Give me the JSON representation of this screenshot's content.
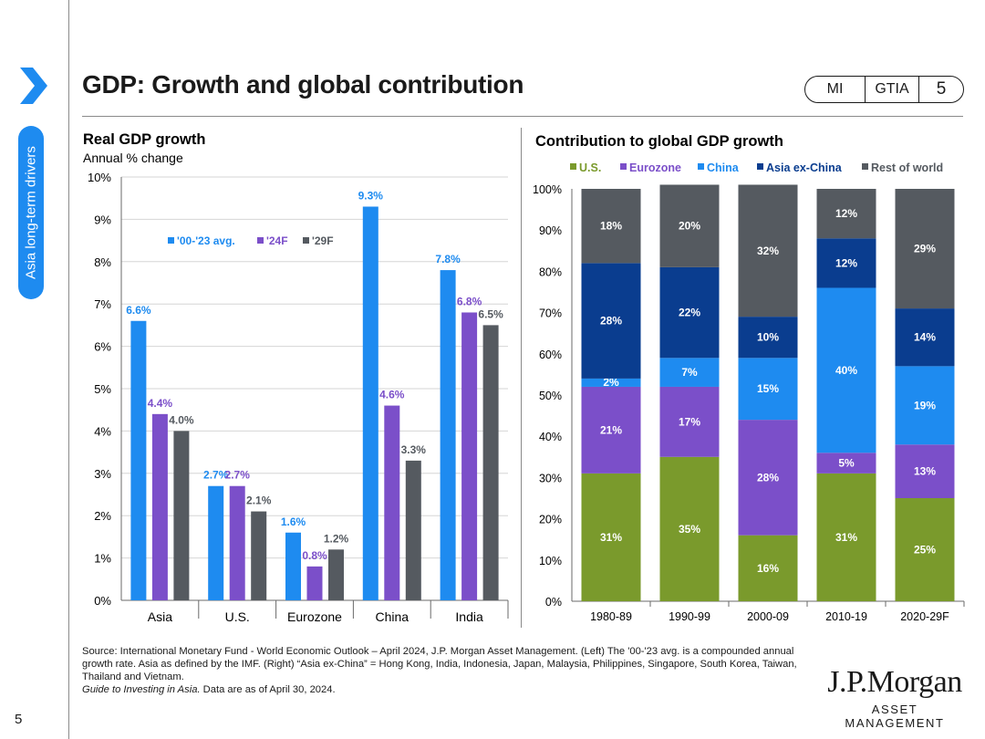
{
  "sidebar": {
    "section": "Asia long-term drivers",
    "page_number": "5"
  },
  "header": {
    "title": "GDP: Growth and global contribution",
    "tags": [
      "MI",
      "GTIA",
      "5"
    ]
  },
  "chart_data": [
    {
      "type": "bar",
      "title": "Real GDP growth",
      "subtitle": "Annual % change",
      "categories": [
        "Asia",
        "U.S.",
        "Eurozone",
        "China",
        "India"
      ],
      "series": [
        {
          "name": "'00-'23 avg.",
          "color": "#1e8bf0",
          "values": [
            6.6,
            2.7,
            1.6,
            9.3,
            7.8
          ],
          "labels": [
            "6.6%",
            "2.7%",
            "1.6%",
            "9.3%",
            "7.8%"
          ]
        },
        {
          "name": "'24F",
          "color": "#7b4fc9",
          "values": [
            4.4,
            2.7,
            0.8,
            4.6,
            6.8
          ],
          "labels": [
            "4.4%",
            "2.7%",
            "0.8%",
            "4.6%",
            "6.8%"
          ]
        },
        {
          "name": "'29F",
          "color": "#555a60",
          "values": [
            4.0,
            2.1,
            1.2,
            3.3,
            6.5
          ],
          "labels": [
            "4.0%",
            "2.1%",
            "1.2%",
            "3.3%",
            "6.5%"
          ]
        }
      ],
      "ylim": [
        0,
        10
      ],
      "yticks": [
        "0%",
        "1%",
        "2%",
        "3%",
        "4%",
        "5%",
        "6%",
        "7%",
        "8%",
        "9%",
        "10%"
      ]
    },
    {
      "type": "bar",
      "stacked": true,
      "title": "Contribution to global GDP growth",
      "categories": [
        "1980-89",
        "1990-99",
        "2000-09",
        "2010-19",
        "2020-29F"
      ],
      "series": [
        {
          "name": "U.S.",
          "color": "#7a9a2c",
          "values": [
            31,
            35,
            16,
            31,
            25
          ]
        },
        {
          "name": "Eurozone",
          "color": "#7b4fc9",
          "values": [
            21,
            17,
            28,
            5,
            13
          ]
        },
        {
          "name": "China",
          "color": "#1e8bf0",
          "values": [
            2,
            7,
            15,
            40,
            19
          ]
        },
        {
          "name": "Asia ex-China",
          "color": "#0a3d8f",
          "values": [
            28,
            22,
            10,
            12,
            14
          ]
        },
        {
          "name": "Rest of world",
          "color": "#555a60",
          "values": [
            18,
            20,
            32,
            12,
            29
          ]
        }
      ],
      "ylim": [
        0,
        100
      ],
      "yticks": [
        "0%",
        "10%",
        "20%",
        "30%",
        "40%",
        "50%",
        "60%",
        "70%",
        "80%",
        "90%",
        "100%"
      ]
    }
  ],
  "footer": {
    "source": "Source: International Monetary Fund - World Economic Outlook – April 2024, J.P. Morgan Asset Management. (Left) The '00-'23 avg. is a compounded annual growth rate. Asia as defined by the IMF. (Right) “Asia ex-China” = Hong Kong, India, Indonesia, Japan, Malaysia, Philippines, Singapore, South Korea, Taiwan, Thailand and Vietnam.",
    "guide": "Guide to Investing in Asia.",
    "asof": " Data are as of April 30, 2024."
  },
  "logo": {
    "name": "J.P.Morgan",
    "sub": "ASSET MANAGEMENT"
  }
}
